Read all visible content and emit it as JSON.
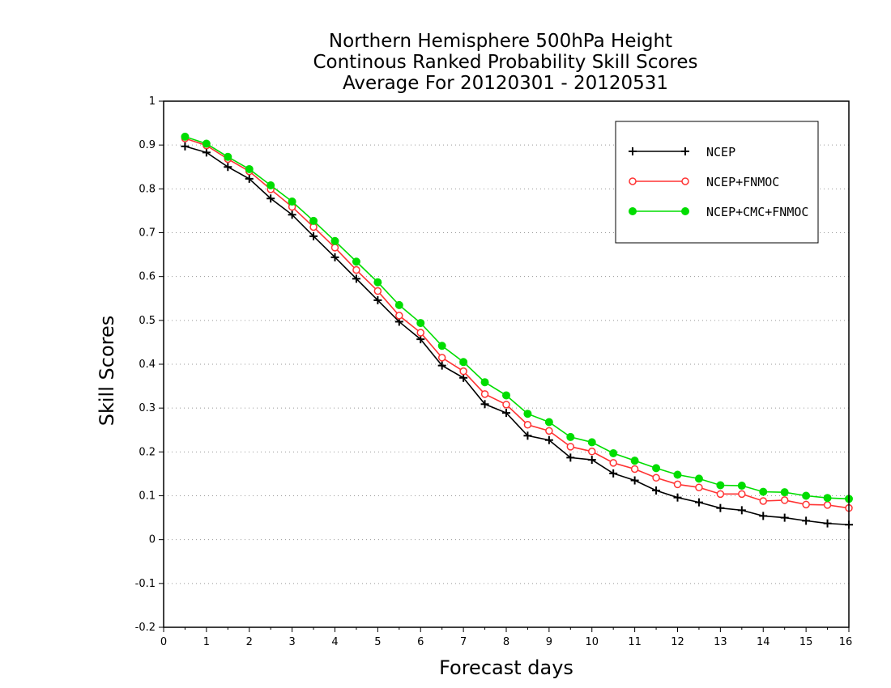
{
  "chart_data": {
    "type": "line",
    "title_lines": [
      "Northern Hemisphere 500hPa Height",
      "Continous Ranked Probability Skill Scores",
      "Average For 20120301 - 20120531"
    ],
    "xlabel": "Forecast days",
    "ylabel": "Skill Scores",
    "xlim": [
      0,
      16
    ],
    "ylim": [
      -0.2,
      1
    ],
    "x_ticks": [
      0,
      1,
      2,
      3,
      4,
      5,
      6,
      7,
      8,
      9,
      10,
      11,
      12,
      13,
      14,
      15,
      16
    ],
    "x_tick_labels": [
      "0",
      "1",
      "2",
      "3",
      "4",
      "5",
      "6",
      "7",
      "8",
      "9",
      "10",
      "11",
      "12",
      "13",
      "14",
      "15",
      "16"
    ],
    "y_ticks": [
      -0.2,
      -0.1,
      0,
      0.1,
      0.2,
      0.3,
      0.4,
      0.5,
      0.6,
      0.7,
      0.8,
      0.9,
      1
    ],
    "y_tick_labels": [
      "-0.2",
      "-0.1",
      "0",
      "0.1",
      "0.2",
      "0.3",
      "0.4",
      "0.5",
      "0.6",
      "0.7",
      "0.8",
      "0.9",
      "1"
    ],
    "grid": "horizontal dotted",
    "legend_position": "top-right",
    "x": [
      0.5,
      1,
      1.5,
      2,
      2.5,
      3,
      3.5,
      4,
      4.5,
      5,
      5.5,
      6,
      6.5,
      7,
      7.5,
      8,
      8.5,
      9,
      9.5,
      10,
      10.5,
      11,
      11.5,
      12,
      12.5,
      13,
      13.5,
      14,
      14.5,
      15,
      15.5,
      16
    ],
    "series": [
      {
        "name": "NCEP",
        "color": "#000000",
        "marker": "plus",
        "values": [
          0.897,
          0.883,
          0.85,
          0.823,
          0.778,
          0.741,
          0.692,
          0.644,
          0.595,
          0.546,
          0.497,
          0.457,
          0.397,
          0.369,
          0.309,
          0.289,
          0.237,
          0.227,
          0.187,
          0.182,
          0.151,
          0.135,
          0.112,
          0.096,
          0.085,
          0.072,
          0.067,
          0.054,
          0.05,
          0.043,
          0.037,
          0.034
        ]
      },
      {
        "name": "NCEP+FNMOC",
        "color": "#ff3333",
        "marker": "open-circle",
        "values": [
          0.915,
          0.899,
          0.868,
          0.84,
          0.799,
          0.759,
          0.713,
          0.666,
          0.615,
          0.567,
          0.511,
          0.472,
          0.415,
          0.384,
          0.332,
          0.308,
          0.262,
          0.248,
          0.212,
          0.201,
          0.175,
          0.161,
          0.141,
          0.126,
          0.119,
          0.104,
          0.104,
          0.088,
          0.09,
          0.08,
          0.079,
          0.072
        ]
      },
      {
        "name": "NCEP+CMC+FNMOC",
        "color": "#00dd00",
        "marker": "filled-circle",
        "values": [
          0.919,
          0.903,
          0.873,
          0.845,
          0.808,
          0.771,
          0.727,
          0.681,
          0.634,
          0.587,
          0.535,
          0.494,
          0.442,
          0.405,
          0.359,
          0.329,
          0.287,
          0.268,
          0.234,
          0.222,
          0.197,
          0.18,
          0.163,
          0.148,
          0.139,
          0.124,
          0.123,
          0.109,
          0.108,
          0.1,
          0.095,
          0.093
        ]
      }
    ]
  }
}
